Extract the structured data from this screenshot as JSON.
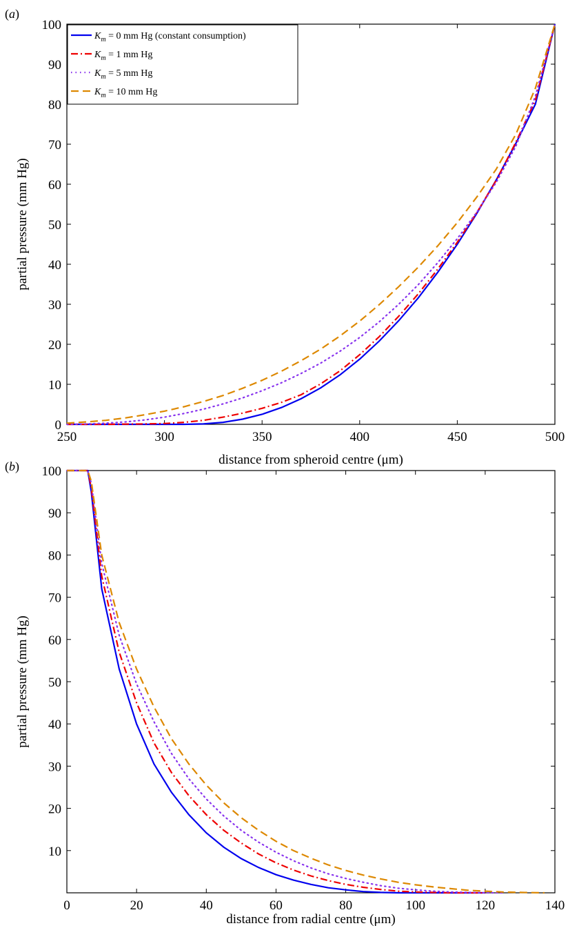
{
  "figure": {
    "colors": {
      "km0": "#0000ee",
      "km1": "#ee0000",
      "km5": "#8833ee",
      "km10": "#dd8800"
    }
  },
  "chart_data": [
    {
      "type": "line",
      "panel_label": "(a)",
      "xlabel": "distance from spheroid centre (μm)",
      "ylabel": "partial pressure (mm Hg)",
      "xlim": [
        250,
        500
      ],
      "ylim": [
        0,
        100
      ],
      "xticks": [
        250,
        300,
        350,
        400,
        450,
        500
      ],
      "yticks": [
        0,
        10,
        20,
        30,
        40,
        50,
        60,
        70,
        80,
        90,
        100
      ],
      "legend": {
        "position": "top-left",
        "entries": [
          {
            "series": "km0",
            "parts": [
              "K",
              "m",
              " = 0 mm Hg (constant consumption)"
            ]
          },
          {
            "series": "km1",
            "parts": [
              "K",
              "m",
              " = 1 mm Hg"
            ]
          },
          {
            "series": "km5",
            "parts": [
              "K",
              "m",
              " = 5 mm Hg"
            ]
          },
          {
            "series": "km10",
            "parts": [
              "K",
              "m",
              " = 10 mm Hg"
            ]
          }
        ]
      },
      "series": [
        {
          "key": "km0",
          "style": "solid",
          "x": [
            250,
            300,
            310,
            320,
            330,
            340,
            350,
            360,
            370,
            380,
            390,
            400,
            410,
            420,
            430,
            440,
            450,
            460,
            470,
            480,
            490,
            500
          ],
          "y": [
            0,
            0,
            0,
            0.1,
            0.5,
            1.3,
            2.5,
            4.2,
            6.4,
            9.1,
            12.4,
            16.3,
            20.8,
            25.9,
            31.6,
            38.0,
            45.0,
            52.7,
            61.1,
            70.2,
            80.0,
            100
          ]
        },
        {
          "key": "km1",
          "style": "dashdot",
          "x": [
            250,
            270,
            290,
            300,
            310,
            320,
            330,
            340,
            350,
            360,
            370,
            380,
            390,
            400,
            410,
            420,
            430,
            440,
            450,
            460,
            470,
            480,
            490,
            500
          ],
          "y": [
            0,
            0,
            0.1,
            0.2,
            0.5,
            1.0,
            1.8,
            2.8,
            4.0,
            5.5,
            7.4,
            10.1,
            13.4,
            17.4,
            21.9,
            27.0,
            32.6,
            38.8,
            45.5,
            52.9,
            61.0,
            70.5,
            81.0,
            100
          ]
        },
        {
          "key": "km5",
          "style": "dotted",
          "x": [
            250,
            260,
            270,
            280,
            290,
            300,
            310,
            320,
            330,
            340,
            350,
            360,
            370,
            380,
            390,
            400,
            410,
            420,
            430,
            440,
            450,
            460,
            470,
            480,
            490,
            500
          ],
          "y": [
            0,
            0.1,
            0.3,
            0.6,
            1.1,
            1.8,
            2.7,
            3.8,
            5.1,
            6.6,
            8.4,
            10.4,
            12.7,
            15.3,
            18.3,
            21.7,
            25.6,
            30.0,
            34.9,
            40.4,
            46.4,
            53.0,
            60.5,
            69.5,
            82.0,
            100
          ]
        },
        {
          "key": "km10",
          "style": "dashed",
          "x": [
            250,
            260,
            270,
            280,
            290,
            300,
            310,
            320,
            330,
            340,
            350,
            360,
            370,
            380,
            390,
            400,
            410,
            420,
            430,
            440,
            450,
            460,
            470,
            480,
            490,
            500
          ],
          "y": [
            0.3,
            0.6,
            1.0,
            1.6,
            2.4,
            3.3,
            4.4,
            5.7,
            7.2,
            9.0,
            11.0,
            13.3,
            15.9,
            18.8,
            22.1,
            25.8,
            29.9,
            34.4,
            39.3,
            44.6,
            50.4,
            56.8,
            63.8,
            72.5,
            84.0,
            100
          ]
        }
      ]
    },
    {
      "type": "line",
      "panel_label": "(b)",
      "xlabel": "distance from radial centre (μm)",
      "ylabel": "partial pressure (mm Hg)",
      "xlim": [
        0,
        140
      ],
      "ylim": [
        0,
        100
      ],
      "xticks": [
        0,
        20,
        40,
        60,
        80,
        100,
        120,
        140
      ],
      "yticks": [
        10,
        20,
        30,
        40,
        50,
        60,
        70,
        80,
        90,
        100
      ],
      "series": [
        {
          "key": "km0",
          "style": "solid",
          "x": [
            0,
            6,
            7,
            10,
            15,
            20,
            25,
            30,
            35,
            40,
            45,
            50,
            55,
            60,
            65,
            70,
            75,
            80,
            85,
            90,
            95,
            100,
            110,
            120
          ],
          "y": [
            100,
            100,
            95,
            72,
            53,
            40,
            30.5,
            23.8,
            18.5,
            14.2,
            10.8,
            8.1,
            6.0,
            4.3,
            3.0,
            2.0,
            1.2,
            0.7,
            0.3,
            0.1,
            0,
            0,
            0,
            0
          ]
        },
        {
          "key": "km1",
          "style": "dashdot",
          "x": [
            0,
            6,
            7,
            10,
            15,
            20,
            25,
            30,
            35,
            40,
            45,
            50,
            55,
            60,
            65,
            70,
            75,
            80,
            85,
            90,
            95,
            100,
            105,
            110,
            115,
            120
          ],
          "y": [
            100,
            100,
            96,
            75,
            57,
            45,
            35.5,
            28.5,
            23.0,
            18.5,
            14.8,
            11.8,
            9.2,
            7.1,
            5.4,
            4.0,
            2.9,
            2.0,
            1.3,
            0.8,
            0.4,
            0.2,
            0.1,
            0,
            0,
            0
          ]
        },
        {
          "key": "km5",
          "style": "dotted",
          "x": [
            0,
            6,
            7,
            10,
            15,
            20,
            25,
            30,
            35,
            40,
            45,
            50,
            55,
            60,
            65,
            70,
            75,
            80,
            85,
            90,
            95,
            100,
            105,
            110,
            115,
            120,
            125
          ],
          "y": [
            100,
            100,
            97,
            78,
            61,
            49.5,
            40.5,
            33.0,
            27.0,
            22.2,
            18.2,
            14.8,
            12.0,
            9.6,
            7.6,
            5.9,
            4.5,
            3.4,
            2.5,
            1.7,
            1.1,
            0.7,
            0.4,
            0.2,
            0.1,
            0,
            0
          ]
        },
        {
          "key": "km10",
          "style": "dashed",
          "x": [
            0,
            6,
            7,
            10,
            15,
            20,
            25,
            30,
            35,
            40,
            45,
            50,
            55,
            60,
            65,
            70,
            75,
            80,
            85,
            90,
            95,
            100,
            105,
            110,
            115,
            120,
            125,
            130,
            137
          ],
          "y": [
            100,
            100,
            97.5,
            80,
            64,
            53,
            44,
            36.5,
            30.5,
            25.5,
            21.3,
            17.8,
            14.8,
            12.2,
            10.0,
            8.2,
            6.6,
            5.3,
            4.2,
            3.3,
            2.5,
            1.9,
            1.4,
            1.0,
            0.6,
            0.4,
            0.2,
            0.1,
            0
          ]
        }
      ]
    }
  ]
}
